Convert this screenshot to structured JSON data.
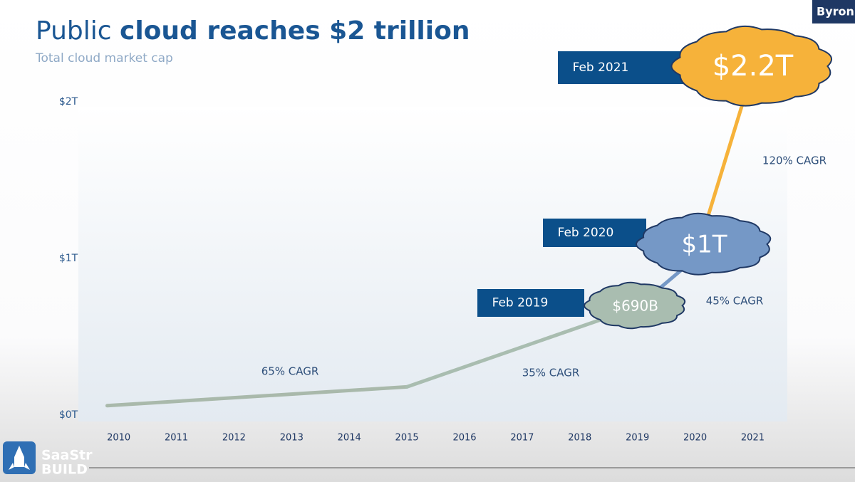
{
  "chart_data": {
    "type": "line",
    "title": [
      "Public",
      "cloud reaches $2 trillion"
    ],
    "subtitle": "Total cloud market cap",
    "x": [
      2009.8,
      2015,
      2019,
      2020,
      2021
    ],
    "values": [
      0.06,
      0.18,
      0.69,
      1.0,
      2.2
    ],
    "value_labels": [
      null,
      null,
      "$690B",
      "$1T",
      "$2.2T"
    ],
    "point_labels": [
      null,
      null,
      "Feb 2019",
      "Feb 2020",
      "Feb 2021"
    ],
    "colors": [
      "#a9b9ab",
      "#a9b9ab",
      "#a9bdb0",
      "#7598c6",
      "#f6b23a"
    ],
    "xlim": [
      2009.3,
      2021.6
    ],
    "xticks": [
      2010,
      2011,
      2012,
      2013,
      2014,
      2015,
      2016,
      2017,
      2018,
      2019,
      2020,
      2021
    ],
    "ylim": [
      0,
      2
    ],
    "yticks": [
      {
        "value": 0,
        "label": "$0T"
      },
      {
        "value": 1,
        "label": "$1T"
      },
      {
        "value": 2,
        "label": "$2T"
      }
    ],
    "annotations": [
      "65% CAGR",
      "35% CAGR",
      "45% CAGR",
      "120% CAGR"
    ],
    "grid": false
  },
  "overlay": {
    "speaker": "Byron",
    "logo": [
      "SaaStr",
      "BUILD"
    ]
  }
}
